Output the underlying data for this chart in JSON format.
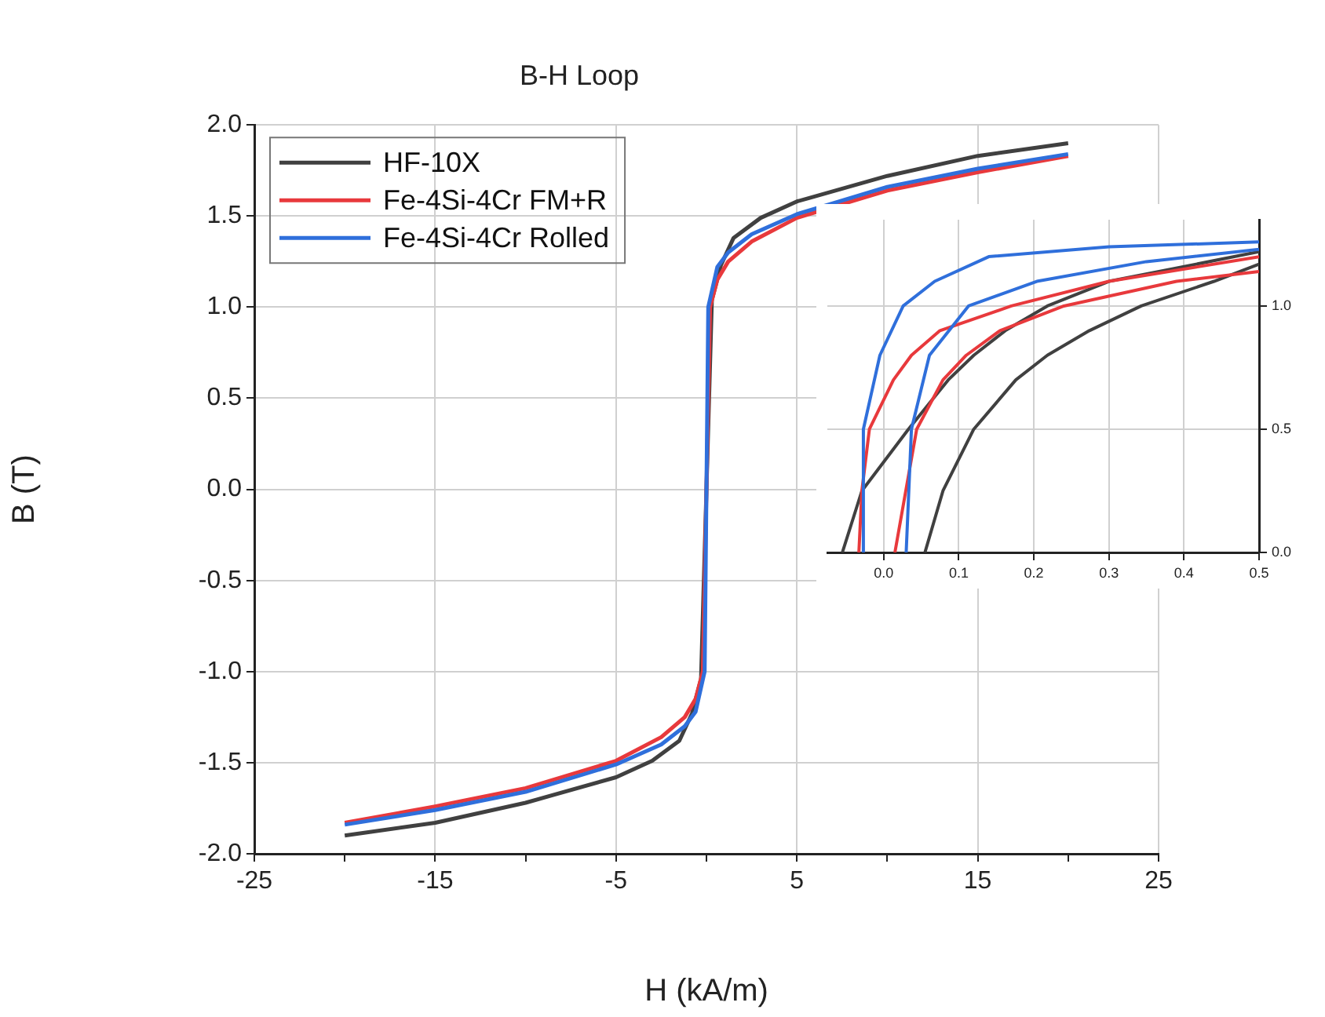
{
  "chart_data": [
    {
      "type": "line",
      "title": "B-H Loop",
      "xlabel": "H (kA/m)",
      "ylabel": "B (T)",
      "xlim": [
        -25,
        25
      ],
      "xticks": [
        -25,
        {
          "value": -20,
          "label": null
        },
        -15,
        {
          "value": -10,
          "label": null
        },
        -5,
        {
          "value": 0,
          "label": null
        },
        5,
        {
          "value": 10,
          "label": null
        },
        15,
        {
          "value": 20,
          "label": null
        },
        25
      ],
      "ylim": [
        -2,
        2
      ],
      "yticks": [
        {
          "value": -2,
          "label": "-2.0"
        },
        -1.5,
        {
          "value": -1,
          "label": "-1.0"
        },
        -0.5,
        {
          "value": 0,
          "label": "0.0"
        },
        0.5,
        {
          "value": 1,
          "label": "1.0"
        },
        1.5,
        {
          "value": 2,
          "label": "2.0"
        }
      ],
      "grid": true,
      "legend": "top left",
      "marker": "none",
      "line_style": "solid",
      "series": [
        {
          "name": "HF-10X",
          "color": "#404040",
          "x": [
            -20,
            -15,
            -10,
            -5,
            -3,
            -1.5,
            -0.8,
            -0.3,
            0,
            0.3,
            0.8,
            1.5,
            3,
            5,
            10,
            15,
            20
          ],
          "values": [
            -1.9,
            -1.83,
            -1.72,
            -1.58,
            -1.49,
            -1.38,
            -1.23,
            -1.04,
            0,
            1.04,
            1.23,
            1.38,
            1.49,
            1.58,
            1.72,
            1.83,
            1.9
          ]
        },
        {
          "name": "Fe-4Si-4Cr FM+R",
          "color": "#e8393c",
          "x": [
            -20,
            -15,
            -10,
            -5,
            -2.5,
            -1.2,
            -0.6,
            -0.2,
            0,
            0.2,
            0.6,
            1.2,
            2.5,
            5,
            10,
            15,
            20
          ],
          "values": [
            -1.83,
            -1.74,
            -1.64,
            -1.49,
            -1.36,
            -1.25,
            -1.15,
            -1.0,
            0,
            1.0,
            1.15,
            1.25,
            1.36,
            1.49,
            1.64,
            1.74,
            1.83
          ]
        },
        {
          "name": "Fe-4Si-4Cr Rolled",
          "color": "#2f6fdb",
          "x": [
            -20,
            -15,
            -10,
            -5,
            -2.5,
            -1.2,
            -0.6,
            -0.1,
            0,
            0.1,
            0.6,
            1.2,
            2.5,
            5,
            10,
            15,
            20
          ],
          "values": [
            -1.84,
            -1.76,
            -1.66,
            -1.51,
            -1.4,
            -1.3,
            -1.22,
            -1.0,
            0,
            1.0,
            1.22,
            1.3,
            1.4,
            1.51,
            1.66,
            1.76,
            1.84
          ]
        }
      ]
    },
    {
      "type": "line",
      "xlim": [
        -0.075,
        0.5
      ],
      "xticks": [
        {
          "value": 0,
          "label": "0.0"
        },
        0.1,
        0.2,
        0.3,
        0.4,
        0.5
      ],
      "ylim": [
        0,
        1.35
      ],
      "yticks": [
        {
          "value": 0,
          "label": "0.0"
        },
        0.5,
        {
          "value": 1,
          "label": "1.0"
        }
      ],
      "grid": true,
      "legend": false,
      "marker": "none",
      "line_style": "solid",
      "series": [
        {
          "color": "#404040",
          "x": [
            -0.055,
            -0.029,
            0.033,
            0.086,
            0.12,
            0.162,
            0.218,
            0.3,
            0.5
          ],
          "values": [
            0,
            0.25,
            0.5,
            0.7,
            0.8,
            0.9,
            1.0,
            1.1,
            1.22
          ]
        },
        {
          "color": "#404040",
          "x": [
            0.055,
            0.079,
            0.12,
            0.176,
            0.218,
            0.274,
            0.343,
            0.44,
            0.5
          ],
          "values": [
            0,
            0.25,
            0.5,
            0.7,
            0.8,
            0.9,
            1.0,
            1.1,
            1.17
          ]
        },
        {
          "color": "#e8393c",
          "x": [
            -0.033,
            -0.029,
            -0.019,
            0.013,
            0.037,
            0.075,
            0.17,
            0.3,
            0.5
          ],
          "values": [
            0,
            0.25,
            0.5,
            0.7,
            0.8,
            0.9,
            1.0,
            1.1,
            1.2
          ]
        },
        {
          "color": "#e8393c",
          "x": [
            0.015,
            0.044,
            0.079,
            0.11,
            0.155,
            0.24,
            0.39,
            0.5
          ],
          "values": [
            0,
            0.5,
            0.7,
            0.8,
            0.9,
            1.0,
            1.1,
            1.14
          ]
        },
        {
          "color": "#2f6fdb",
          "x": [
            -0.028,
            -0.027,
            -0.005,
            0.026,
            0.068,
            0.14,
            0.3,
            0.5
          ],
          "values": [
            0,
            0.5,
            0.8,
            1.0,
            1.1,
            1.2,
            1.24,
            1.26
          ]
        },
        {
          "color": "#2f6fdb",
          "x": [
            0.03,
            0.037,
            0.061,
            0.113,
            0.204,
            0.35,
            0.5
          ],
          "values": [
            0,
            0.5,
            0.8,
            1.0,
            1.1,
            1.18,
            1.23
          ]
        }
      ]
    }
  ]
}
